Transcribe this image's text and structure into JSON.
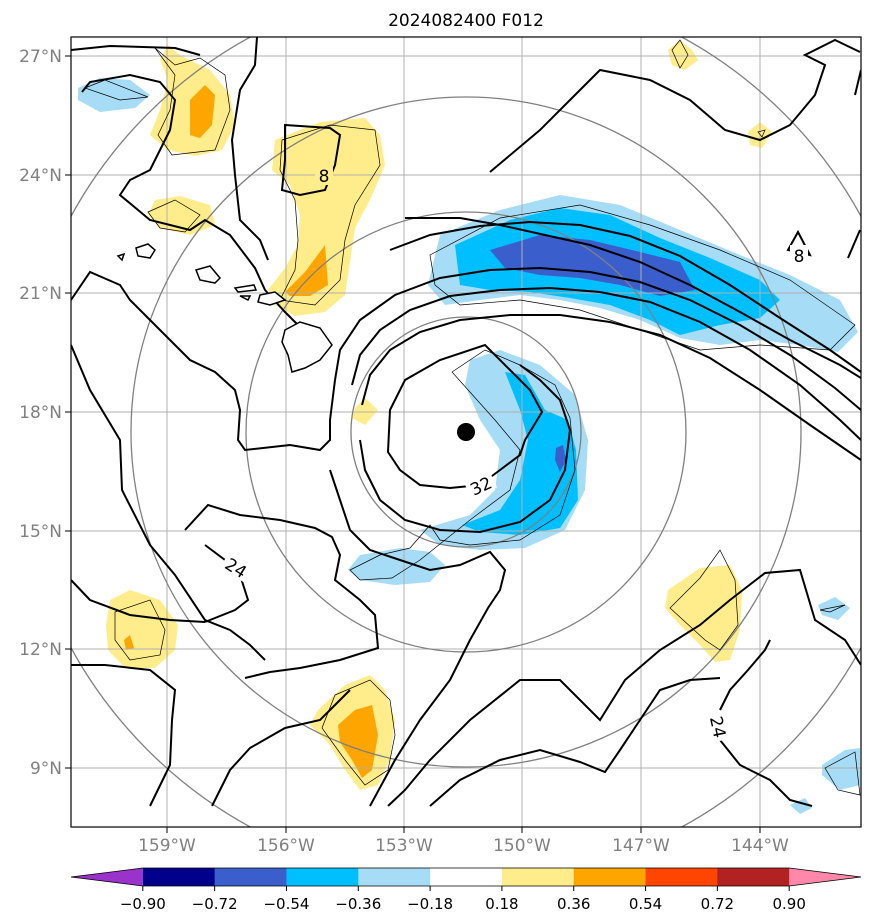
{
  "title": "2024082400 F012",
  "axes": {
    "x_ticks": [
      "159°W",
      "156°W",
      "153°W",
      "150°W",
      "147°W",
      "144°W"
    ],
    "y_ticks": [
      "27°N",
      "24°N",
      "21°N",
      "18°N",
      "15°N",
      "12°N",
      "9°N"
    ]
  },
  "contour_labels": [
    {
      "text": "8"
    },
    {
      "text": "8"
    },
    {
      "text": "24"
    },
    {
      "text": "24"
    },
    {
      "text": "32"
    }
  ],
  "colorbar": {
    "tick_labels": [
      "−0.90",
      "−0.72",
      "−0.54",
      "−0.36",
      "−0.18",
      "0.18",
      "0.36",
      "0.54",
      "0.72",
      "0.90"
    ],
    "colors": [
      "#9933cc",
      "#00008b",
      "#3a5fcd",
      "#00bfff",
      "#a6dcf5",
      "#ffffff",
      "#ffec8b",
      "#ffa500",
      "#ff4500",
      "#b22222",
      "#ff88aa"
    ]
  },
  "center_marker": {
    "lon": -151.3,
    "lat": 17.5
  }
}
